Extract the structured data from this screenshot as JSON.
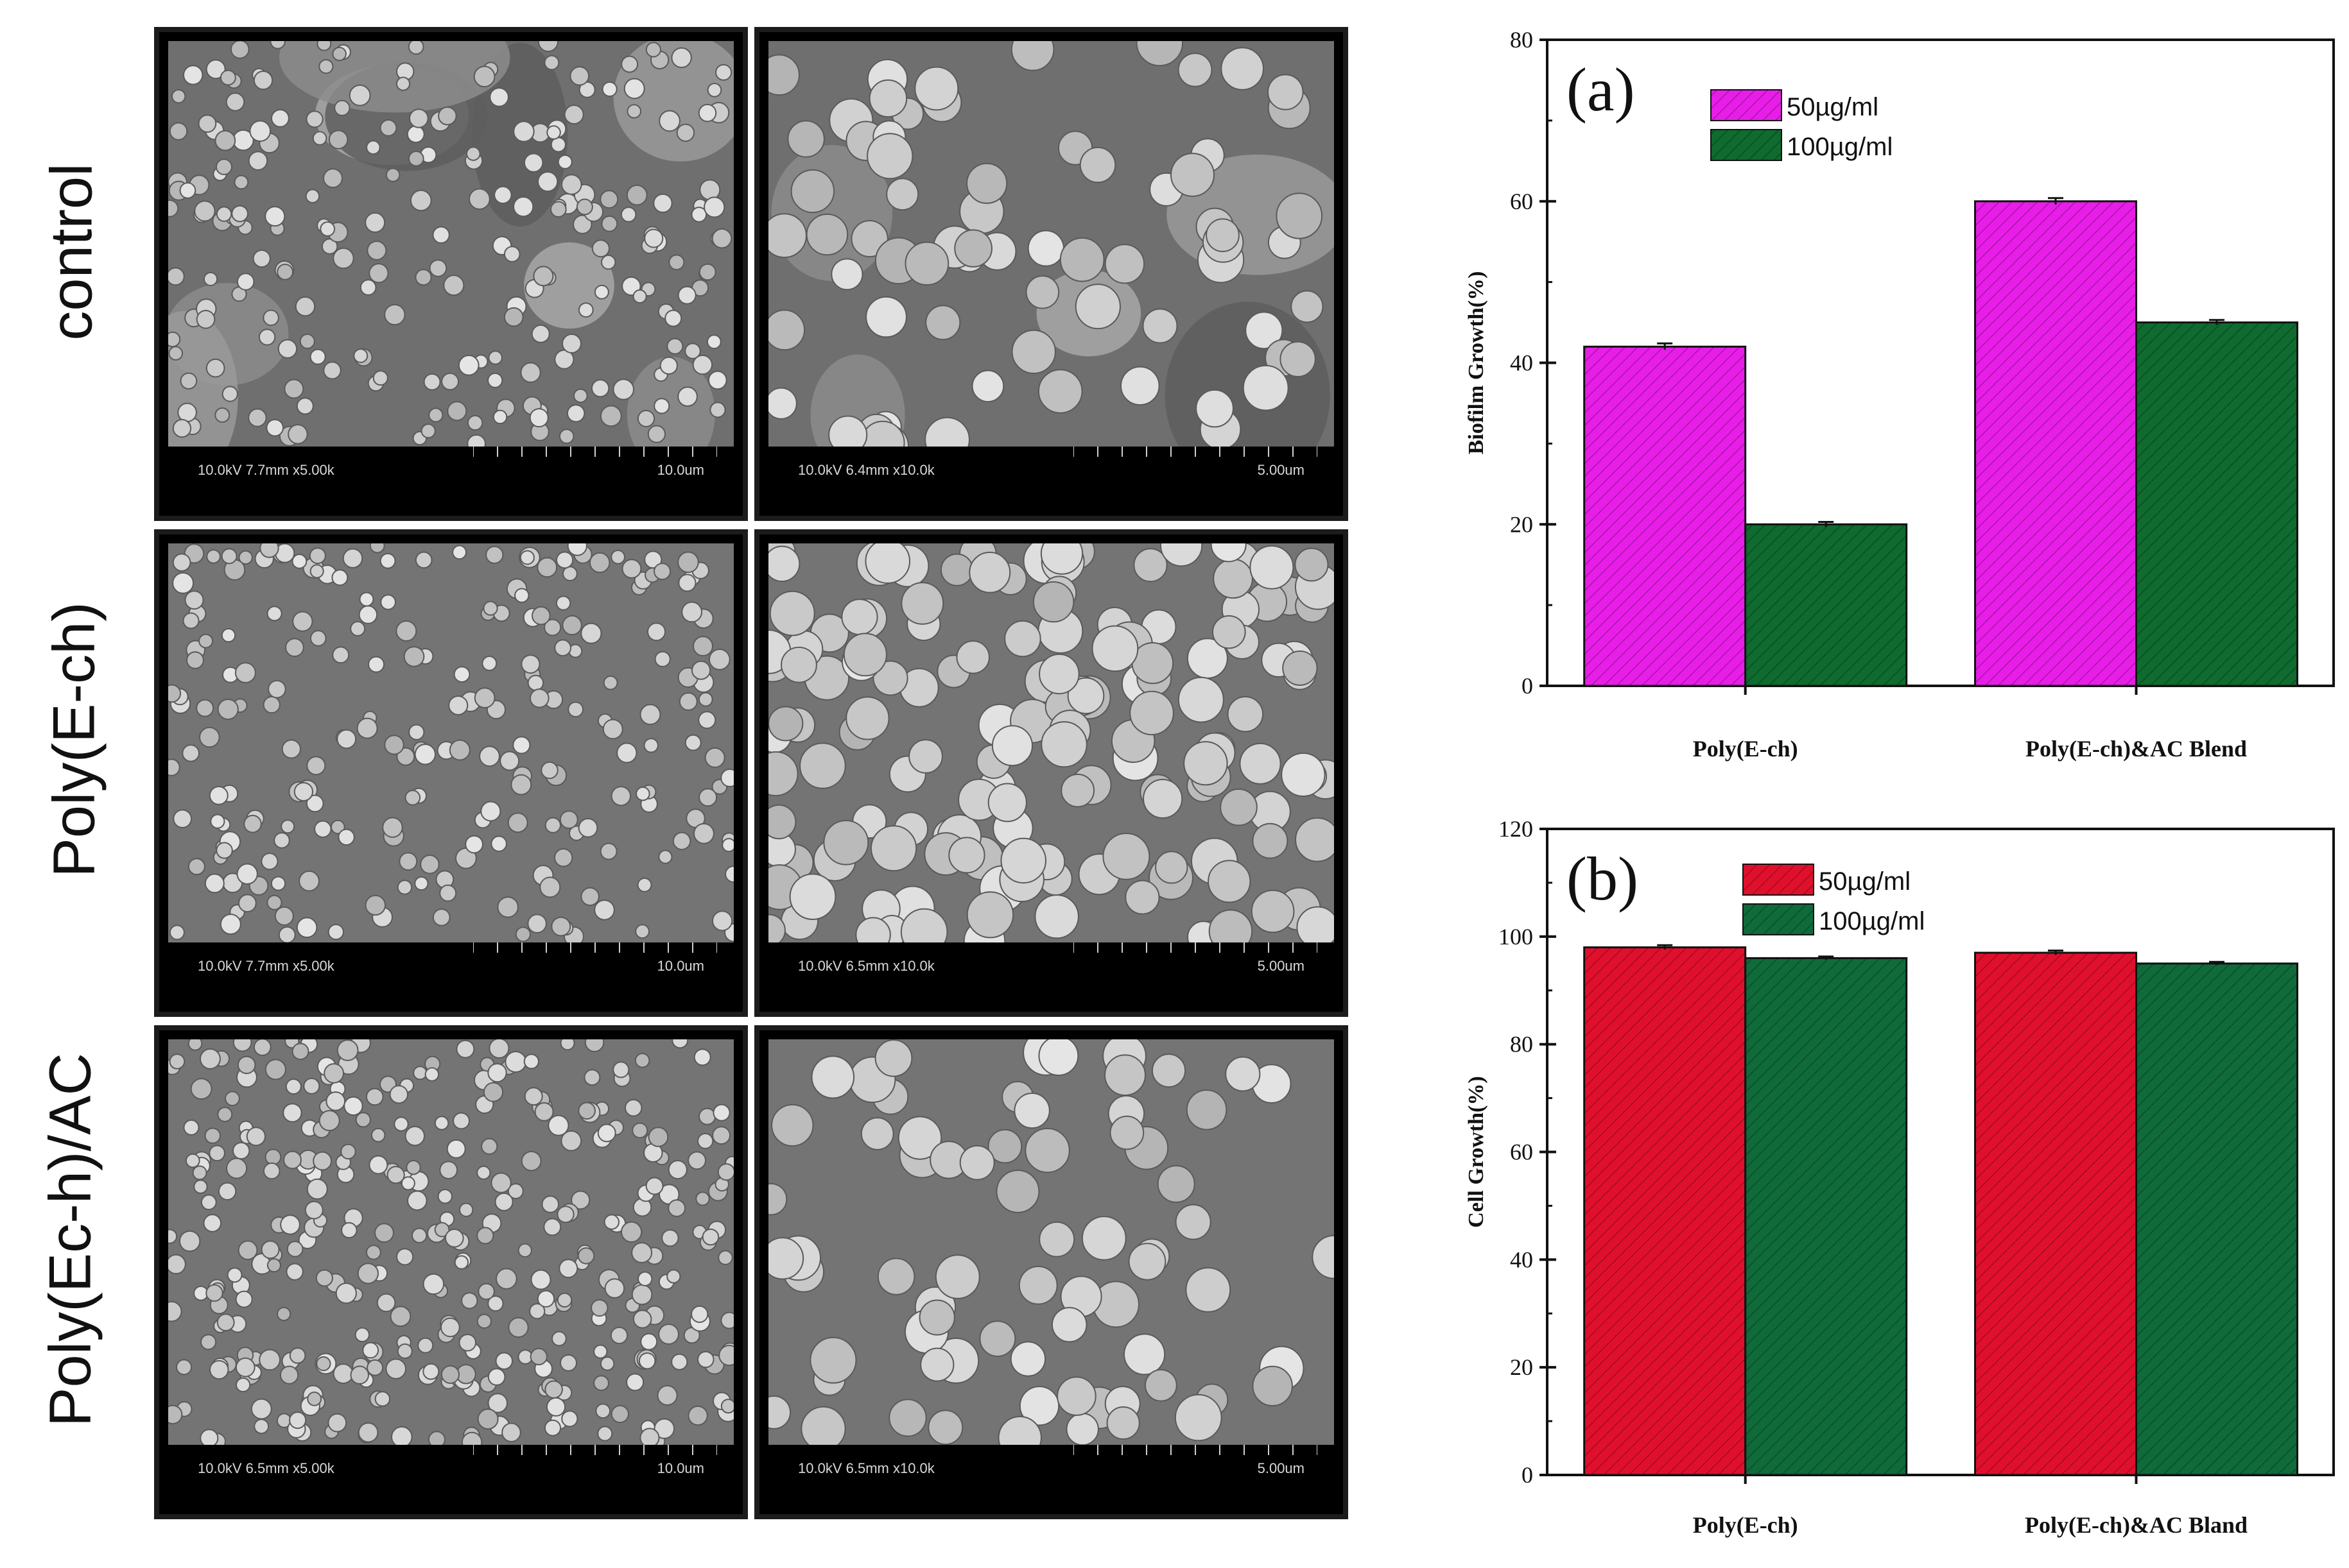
{
  "row_labels": [
    "control",
    "Poly(E-ch)",
    "Poly(Ec-h)/AC"
  ],
  "sem_panels": [
    {
      "info": "10.0kV 7.7mm x5.00k",
      "scale": "10.0um",
      "texture": "control-low"
    },
    {
      "info": "10.0kV 6.4mm x10.0k",
      "scale": "5.00um",
      "texture": "control-high"
    },
    {
      "info": "10.0kV 7.7mm x5.00k",
      "scale": "10.0um",
      "texture": "polyech-low"
    },
    {
      "info": "10.0kV 6.5mm x10.0k",
      "scale": "5.00um",
      "texture": "polyech-high"
    },
    {
      "info": "10.0kV 6.5mm x5.00k",
      "scale": "10.0um",
      "texture": "polyac-low"
    },
    {
      "info": "10.0kV 6.5mm x10.0k",
      "scale": "5.00um",
      "texture": "polyac-high"
    }
  ],
  "chart_data": [
    {
      "type": "bar",
      "panel_label": "(a)",
      "title": "",
      "categories": [
        "Poly(E-ch)",
        "Poly(E-ch)&AC Blend"
      ],
      "series": [
        {
          "name": "50µg/ml",
          "values": [
            42,
            60
          ],
          "errors": [
            0.4,
            0.4
          ],
          "color": "#e81ee8"
        },
        {
          "name": "100µg/ml",
          "values": [
            20,
            45
          ],
          "errors": [
            0.3,
            0.3
          ],
          "color": "#0f6b2f"
        }
      ],
      "xlabel": "",
      "ylabel": "Biofilm Growth(%)",
      "ylim": [
        0,
        80
      ],
      "yticks": [
        0,
        20,
        40,
        60,
        80
      ],
      "legend": "top-left",
      "grid": false
    },
    {
      "type": "bar",
      "panel_label": "(b)",
      "title": "",
      "categories": [
        "Poly(E-ch)",
        "Poly(E-ch)&AC Bland"
      ],
      "series": [
        {
          "name": "50µg/ml",
          "values": [
            98,
            97
          ],
          "errors": [
            0.4,
            0.4
          ],
          "color": "#e0102d"
        },
        {
          "name": "100µg/ml",
          "values": [
            96,
            95
          ],
          "errors": [
            0.3,
            0.3
          ],
          "color": "#0f6b3a"
        }
      ],
      "xlabel": "",
      "ylabel": "Cell Growth(%)",
      "ylim": [
        0,
        120
      ],
      "yticks": [
        0,
        20,
        40,
        60,
        80,
        100,
        120
      ],
      "legend": "top-left",
      "grid": false
    }
  ]
}
